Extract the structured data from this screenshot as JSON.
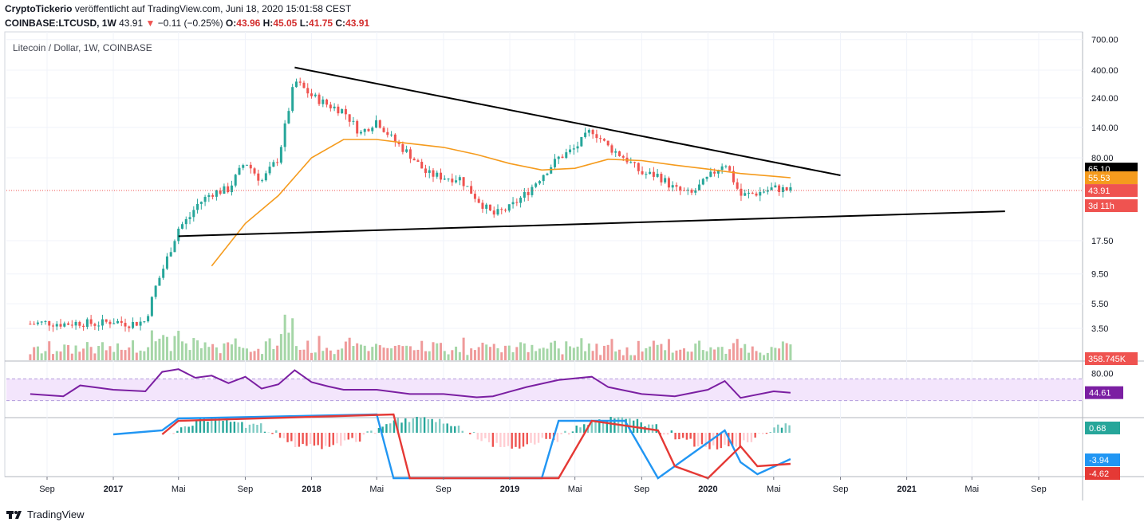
{
  "header": {
    "author": "CryptoTickerio",
    "published_text": "veröffentlicht auf TradingView.com, Juni 18, 2020 15:01:58 CEST",
    "symbol": "COINBASE:LTCUSD, 1W",
    "last": "43.91",
    "change_arrow": "▼",
    "change": "−0.11 (−0.25%)",
    "ohlc": [
      {
        "label": "O:",
        "value": "43.96"
      },
      {
        "label": "H:",
        "value": "45.05"
      },
      {
        "label": "L:",
        "value": "41.75"
      },
      {
        "label": "C:",
        "value": "43.91"
      }
    ]
  },
  "chart_title": "Litecoin / Dollar, 1W, COINBASE",
  "footer": {
    "brand": "TradingView"
  },
  "colors": {
    "up": "#26a69a",
    "up_volume": "#a5d6a7",
    "down": "#ef5350",
    "down_volume": "#ef9a9a",
    "ma": "#f59b1d",
    "rsi": "#7b1fa2",
    "rsi_band": "#f3e5fc",
    "macd_line": "#2196f3",
    "signal_line": "#e53935",
    "trendline": "#000000"
  },
  "chart_data": [
    {
      "type": "candlestick",
      "title": "Litecoin / Dollar, 1W, COINBASE",
      "y_scale": "log",
      "price_axis_ticks": [
        "700.00",
        "400.00",
        "240.00",
        "140.00",
        "80.00",
        "17.50",
        "9.50",
        "5.50",
        "3.50"
      ],
      "time_axis_ticks": [
        "Sep",
        "2017",
        "Mai",
        "Sep",
        "2018",
        "Mai",
        "Sep",
        "2019",
        "Mai",
        "Sep",
        "2020",
        "Mai",
        "Sep",
        "2021",
        "Mai",
        "Sep"
      ],
      "bold_time_ticks": [
        "2017",
        "2018",
        "2019",
        "2020",
        "2021"
      ],
      "ylim": [
        2.5,
        750
      ],
      "price_series": [
        {
          "date": "2016-08",
          "price": 3.8
        },
        {
          "date": "2016-09",
          "price": 3.9
        },
        {
          "date": "2016-10",
          "price": 3.8
        },
        {
          "date": "2016-11",
          "price": 3.9
        },
        {
          "date": "2016-12",
          "price": 3.8
        },
        {
          "date": "2017-01",
          "price": 4.0
        },
        {
          "date": "2017-02",
          "price": 3.8
        },
        {
          "date": "2017-03",
          "price": 4.0
        },
        {
          "date": "2017-03-20",
          "price": 7.5
        },
        {
          "date": "2017-04",
          "price": 10
        },
        {
          "date": "2017-05",
          "price": 22
        },
        {
          "date": "2017-05-25",
          "price": 28
        },
        {
          "date": "2017-06",
          "price": 33
        },
        {
          "date": "2017-07",
          "price": 42
        },
        {
          "date": "2017-08",
          "price": 45
        },
        {
          "date": "2017-09",
          "price": 75
        },
        {
          "date": "2017-10",
          "price": 52
        },
        {
          "date": "2017-11",
          "price": 80
        },
        {
          "date": "2017-12",
          "price": 330
        },
        {
          "date": "2018-01",
          "price": 250
        },
        {
          "date": "2018-02",
          "price": 210
        },
        {
          "date": "2018-03",
          "price": 190
        },
        {
          "date": "2018-04",
          "price": 125
        },
        {
          "date": "2018-05",
          "price": 160
        },
        {
          "date": "2018-06",
          "price": 110
        },
        {
          "date": "2018-07",
          "price": 85
        },
        {
          "date": "2018-08",
          "price": 60
        },
        {
          "date": "2018-09",
          "price": 56
        },
        {
          "date": "2018-10",
          "price": 55
        },
        {
          "date": "2018-11",
          "price": 38
        },
        {
          "date": "2018-12",
          "price": 28
        },
        {
          "date": "2019-01",
          "price": 32
        },
        {
          "date": "2019-02",
          "price": 42
        },
        {
          "date": "2019-03",
          "price": 58
        },
        {
          "date": "2019-04",
          "price": 80
        },
        {
          "date": "2019-05",
          "price": 95
        },
        {
          "date": "2019-06",
          "price": 135
        },
        {
          "date": "2019-07",
          "price": 98
        },
        {
          "date": "2019-08",
          "price": 80
        },
        {
          "date": "2019-09",
          "price": 60
        },
        {
          "date": "2019-10",
          "price": 58
        },
        {
          "date": "2019-11",
          "price": 45
        },
        {
          "date": "2019-12",
          "price": 41
        },
        {
          "date": "2020-01",
          "price": 55
        },
        {
          "date": "2020-02",
          "price": 75
        },
        {
          "date": "2020-03",
          "price": 40
        },
        {
          "date": "2020-04",
          "price": 42
        },
        {
          "date": "2020-05",
          "price": 46
        },
        {
          "date": "2020-06",
          "price": 44
        }
      ],
      "moving_average": [
        {
          "date": "2017-07",
          "value": 11
        },
        {
          "date": "2017-09",
          "value": 24
        },
        {
          "date": "2017-11",
          "value": 40
        },
        {
          "date": "2018-01",
          "value": 80
        },
        {
          "date": "2018-03",
          "value": 112
        },
        {
          "date": "2018-05",
          "value": 112
        },
        {
          "date": "2018-07",
          "value": 104
        },
        {
          "date": "2018-09",
          "value": 97
        },
        {
          "date": "2018-11",
          "value": 85
        },
        {
          "date": "2019-01",
          "value": 72
        },
        {
          "date": "2019-03",
          "value": 64
        },
        {
          "date": "2019-05",
          "value": 66
        },
        {
          "date": "2019-07",
          "value": 78
        },
        {
          "date": "2019-09",
          "value": 76
        },
        {
          "date": "2019-11",
          "value": 70
        },
        {
          "date": "2020-01",
          "value": 65
        },
        {
          "date": "2020-03",
          "value": 60
        },
        {
          "date": "2020-05",
          "value": 57
        },
        {
          "date": "2020-06",
          "value": 55.53
        }
      ],
      "trendlines": [
        {
          "name": "upper",
          "from": {
            "date": "2017-12",
            "price": 420
          },
          "to": {
            "date": "2020-09",
            "price": 58
          }
        },
        {
          "name": "lower",
          "from": {
            "date": "2017-05",
            "price": 19
          },
          "to": {
            "date": "2021-07",
            "price": 30
          }
        }
      ],
      "price_tags": [
        {
          "value": "65.10",
          "color": "#000000"
        },
        {
          "value": "55.53",
          "color": "#f59b1d"
        },
        {
          "value": "43.91",
          "color": "#ef5350"
        },
        {
          "value": "3d 11h",
          "color": "#ef5350"
        },
        {
          "value": "358.745K",
          "color": "#ef5350"
        }
      ]
    },
    {
      "type": "line",
      "name_visible": false,
      "indicator": "RSI",
      "axis_ticks": [
        "80.00"
      ],
      "band": [
        30,
        70
      ],
      "current_value_tag": "44.61",
      "values": [
        {
          "date": "2016-08",
          "value": 42
        },
        {
          "date": "2016-10",
          "value": 38
        },
        {
          "date": "2016-11",
          "value": 58
        },
        {
          "date": "2017-01",
          "value": 50
        },
        {
          "date": "2017-03",
          "value": 47
        },
        {
          "date": "2017-04",
          "value": 83
        },
        {
          "date": "2017-05",
          "value": 88
        },
        {
          "date": "2017-06",
          "value": 72
        },
        {
          "date": "2017-07",
          "value": 76
        },
        {
          "date": "2017-08",
          "value": 62
        },
        {
          "date": "2017-09",
          "value": 74
        },
        {
          "date": "2017-10",
          "value": 52
        },
        {
          "date": "2017-11",
          "value": 60
        },
        {
          "date": "2017-12",
          "value": 86
        },
        {
          "date": "2018-01",
          "value": 64
        },
        {
          "date": "2018-02",
          "value": 56
        },
        {
          "date": "2018-03",
          "value": 50
        },
        {
          "date": "2018-05",
          "value": 50
        },
        {
          "date": "2018-07",
          "value": 42
        },
        {
          "date": "2018-09",
          "value": 42
        },
        {
          "date": "2018-11",
          "value": 36
        },
        {
          "date": "2018-12",
          "value": 38
        },
        {
          "date": "2019-02",
          "value": 55
        },
        {
          "date": "2019-04",
          "value": 68
        },
        {
          "date": "2019-06",
          "value": 74
        },
        {
          "date": "2019-07",
          "value": 55
        },
        {
          "date": "2019-09",
          "value": 42
        },
        {
          "date": "2019-11",
          "value": 38
        },
        {
          "date": "2020-01",
          "value": 50
        },
        {
          "date": "2020-02",
          "value": 66
        },
        {
          "date": "2020-03",
          "value": 35
        },
        {
          "date": "2020-05",
          "value": 47
        },
        {
          "date": "2020-06",
          "value": 44.61
        }
      ]
    },
    {
      "type": "bar",
      "indicator": "MACD",
      "name_visible": false,
      "macd_value_tag": "0.68",
      "macd_line_tag": "-3.94",
      "signal_line_tag": "-4.62"
    }
  ]
}
